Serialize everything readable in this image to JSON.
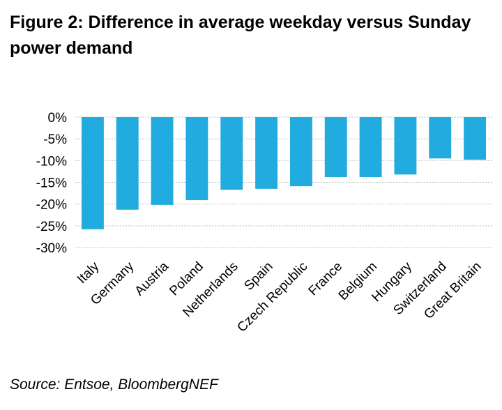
{
  "figure": {
    "title": "Figure 2:  Difference in average weekday versus Sunday power demand",
    "source": "Source: Entsoe, BloombergNEF"
  },
  "colors": {
    "bar": "#22ABDF",
    "grid": "#BFBFBF",
    "text": "#000000"
  },
  "chart_data": {
    "type": "bar",
    "categories": [
      "Italy",
      "Germany",
      "Austria",
      "Poland",
      "Netherlands",
      "Spain",
      "Czech Republic",
      "France",
      "Belgium",
      "Hungary",
      "Switzerland",
      "Great Britain"
    ],
    "values": [
      -25.8,
      -21.3,
      -20.2,
      -19.1,
      -16.7,
      -16.5,
      -15.9,
      -13.8,
      -13.8,
      -13.2,
      -9.5,
      -9.8
    ],
    "ylim": [
      -30,
      0
    ],
    "yticks": [
      0,
      -5,
      -10,
      -15,
      -20,
      -25,
      -30
    ],
    "ytick_labels": [
      "0%",
      "-5%",
      "-10%",
      "-15%",
      "-20%",
      "-25%",
      "-30%"
    ],
    "grid": true,
    "grid_style": "dotted",
    "xlabel": "",
    "ylabel": ""
  }
}
